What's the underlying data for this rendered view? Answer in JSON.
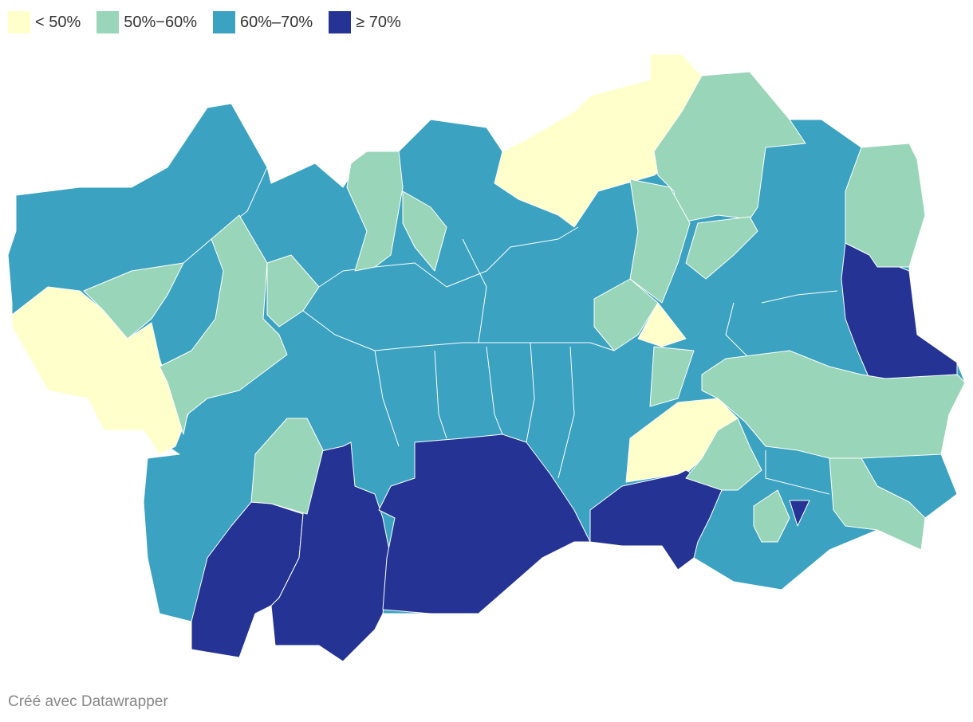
{
  "legend": {
    "items": [
      {
        "label": "< 50%",
        "color": "#ffffcc"
      },
      {
        "label": "50%−60%",
        "color": "#99d5b8"
      },
      {
        "label": "60%–70%",
        "color": "#3ba2c1"
      },
      {
        "label": "≥ 70%",
        "color": "#253494"
      }
    ]
  },
  "footer": "Créé avec Datawrapper"
}
